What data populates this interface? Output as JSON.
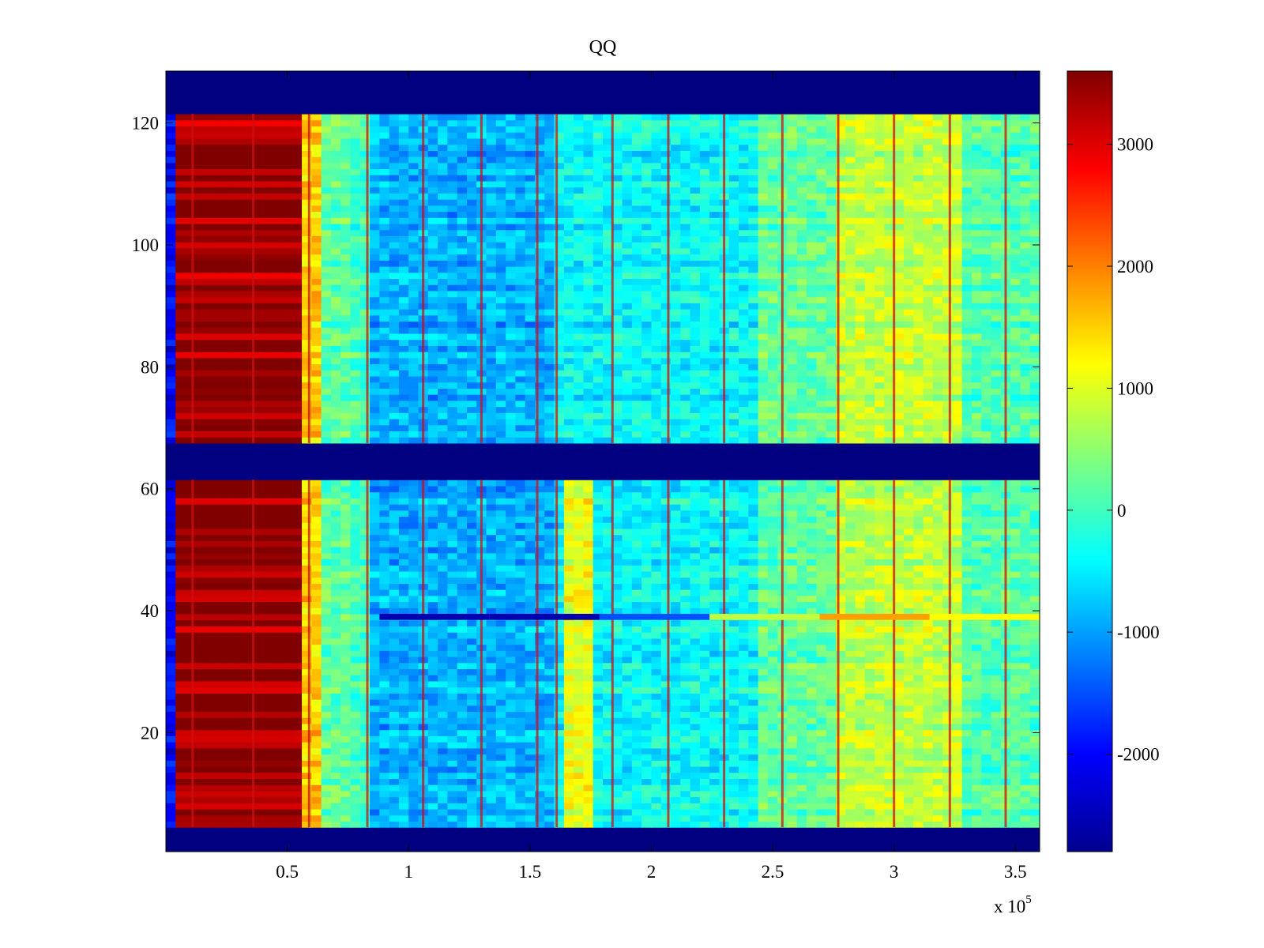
{
  "chart_data": {
    "type": "heatmap",
    "title": "QQ",
    "xlabel": "",
    "ylabel": "",
    "x_multiplier_label": {
      "base": "x 10",
      "exponent": "5"
    },
    "xlim": [
      0,
      360000
    ],
    "ylim": [
      0.5,
      128.5
    ],
    "x_ticks": [
      {
        "value": 50000,
        "label": "0.5"
      },
      {
        "value": 100000,
        "label": "1"
      },
      {
        "value": 150000,
        "label": "1.5"
      },
      {
        "value": 200000,
        "label": "2"
      },
      {
        "value": 250000,
        "label": "2.5"
      },
      {
        "value": 300000,
        "label": "3"
      },
      {
        "value": 350000,
        "label": "3.5"
      }
    ],
    "y_ticks": [
      {
        "value": 20,
        "label": "20"
      },
      {
        "value": 40,
        "label": "40"
      },
      {
        "value": 60,
        "label": "60"
      },
      {
        "value": 80,
        "label": "80"
      },
      {
        "value": 100,
        "label": "100"
      },
      {
        "value": 120,
        "label": "120"
      }
    ],
    "colorbar": {
      "colormap": "jet",
      "clim": [
        -2800,
        3600
      ],
      "ticks": [
        {
          "value": 3000,
          "label": "3000"
        },
        {
          "value": 2000,
          "label": "2000"
        },
        {
          "value": 1000,
          "label": "1000"
        },
        {
          "value": 0,
          "label": "0"
        },
        {
          "value": -1000,
          "label": "-1000"
        },
        {
          "value": -2000,
          "label": "-2000"
        }
      ]
    },
    "row_bands": [
      {
        "rows": [
          1,
          4
        ],
        "value": -2800,
        "note": "empty"
      },
      {
        "rows": [
          5,
          61
        ],
        "value": -300
      },
      {
        "rows": [
          62,
          67
        ],
        "value": -2800,
        "note": "empty"
      },
      {
        "rows": [
          68,
          121
        ],
        "value": -300
      },
      {
        "rows": [
          122,
          128
        ],
        "value": -2800,
        "note": "empty"
      }
    ],
    "column_regions": [
      {
        "x": [
          0,
          3000
        ],
        "value": -2000
      },
      {
        "x": [
          3000,
          58000
        ],
        "value": 3600
      },
      {
        "x": [
          58000,
          65000
        ],
        "value": 1500
      },
      {
        "x": [
          65000,
          78000
        ],
        "value": 200
      },
      {
        "x": [
          85000,
          160000
        ],
        "value": -900
      },
      {
        "x": [
          160000,
          245000
        ],
        "value": -400
      },
      {
        "x": [
          245000,
          275000
        ],
        "value": 200
      },
      {
        "x": [
          275000,
          330000
        ],
        "value": 800
      },
      {
        "x": [
          330000,
          360000
        ],
        "value": 100
      }
    ],
    "vertical_streaks_x": [
      11000,
      36000,
      59000,
      83000,
      106000,
      130000,
      153000,
      161000,
      184000,
      207000,
      230000,
      254000,
      277000,
      300000,
      323000,
      346000
    ],
    "highlight_row": {
      "row": 39,
      "x": [
        88000,
        360000
      ],
      "values": [
        -2500,
        -2500,
        -1500,
        800,
        1800,
        1200
      ]
    }
  }
}
